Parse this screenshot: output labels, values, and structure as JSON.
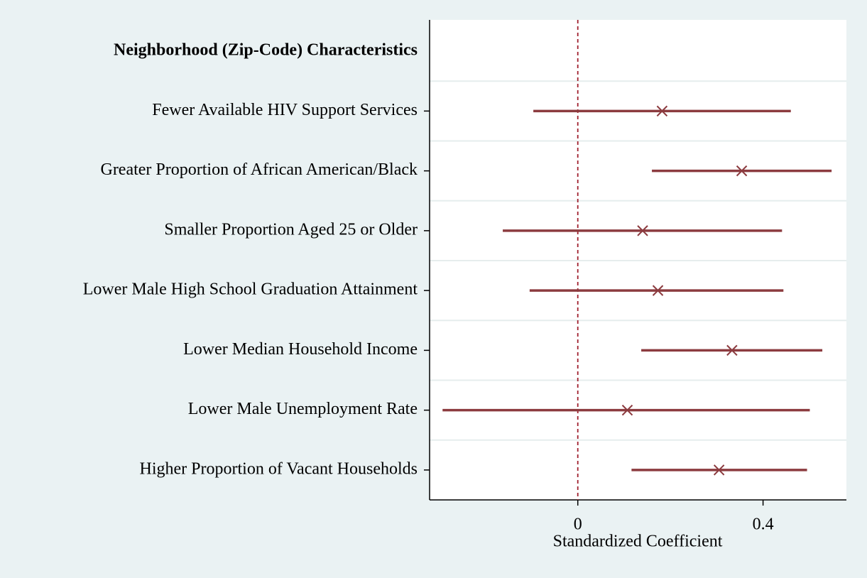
{
  "chart_data": {
    "type": "coefplot",
    "group_label": "Neighborhood (Zip-Code) Characteristics",
    "categories": [
      "Fewer Available HIV Support Services",
      "Greater Proportion of African American/Black",
      "Smaller Proportion Aged 25 or Older",
      "Lower Male High School Graduation Attainment",
      "Lower Median Household Income",
      "Lower Male Unemployment Rate",
      "Higher Proportion of Vacant Households"
    ],
    "series": [
      {
        "color": "#8c3b3f",
        "values": [
          0.182,
          0.354,
          0.14,
          0.173,
          0.333,
          0.107,
          0.305
        ],
        "lower": [
          -0.096,
          0.16,
          -0.162,
          -0.104,
          0.137,
          -0.292,
          0.116
        ],
        "upper": [
          0.46,
          0.548,
          0.441,
          0.444,
          0.528,
          0.501,
          0.495
        ]
      }
    ],
    "xlabel": "Standardized Coefficient",
    "xlim": [
      -0.32,
      0.58
    ],
    "xticks": [
      0,
      0.4
    ],
    "refline": 0,
    "refline_color": "#a0202e"
  }
}
